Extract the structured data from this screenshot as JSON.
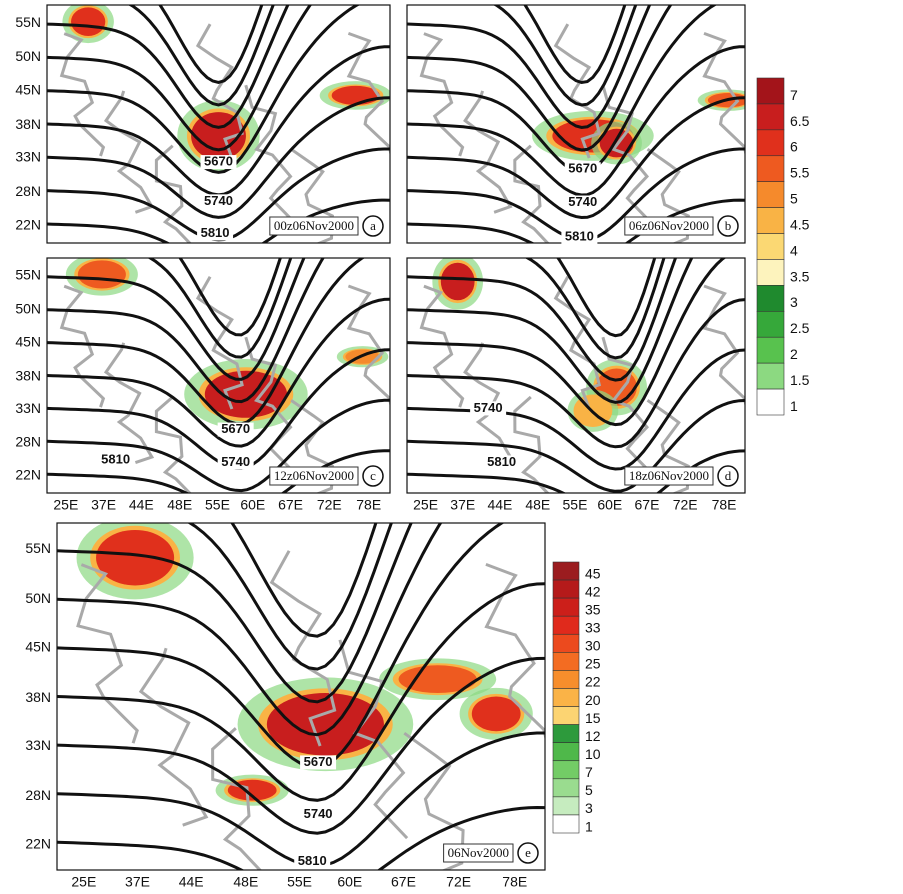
{
  "panels": [
    {
      "time": "00z06Nov2000",
      "label": "a",
      "contours": [
        "5670",
        "5740",
        "5810"
      ]
    },
    {
      "time": "06z06Nov2000",
      "label": "b",
      "contours": [
        "5670",
        "5740",
        "5810"
      ]
    },
    {
      "time": "12z06Nov2000",
      "label": "c",
      "contours": [
        "5670",
        "5740",
        "5810"
      ]
    },
    {
      "time": "18z06Nov2000",
      "label": "d",
      "contours": [
        "5740",
        "5810"
      ]
    },
    {
      "time": "06Nov2000",
      "label": "e",
      "contours": [
        "5670",
        "5740",
        "5810"
      ]
    }
  ],
  "lat_labels": [
    "55N",
    "50N",
    "45N",
    "38N",
    "33N",
    "28N",
    "22N"
  ],
  "lon_labels": [
    "25E",
    "37E",
    "44E",
    "48E",
    "55E",
    "60E",
    "67E",
    "72E",
    "78E"
  ],
  "colorbar_top": {
    "labels": [
      "7",
      "6.5",
      "6",
      "5.5",
      "5",
      "4.5",
      "4",
      "3.5",
      "3",
      "2.5",
      "2",
      "1.5",
      "1"
    ],
    "colors": [
      "#a3141a",
      "#c81e1e",
      "#e0301c",
      "#ee5a20",
      "#f58a2c",
      "#f9b345",
      "#fbd873",
      "#fdf3bd",
      "#1f8a2e",
      "#36a83a",
      "#58c24e",
      "#8cd981",
      "#ffffff"
    ]
  },
  "colorbar_bottom": {
    "labels": [
      "45",
      "42",
      "35",
      "33",
      "30",
      "25",
      "22",
      "20",
      "15",
      "12",
      "10",
      "7",
      "5",
      "3",
      "1"
    ],
    "colors": [
      "#9b1c1f",
      "#b51a1a",
      "#cc1f1a",
      "#e02a1c",
      "#ec4a1e",
      "#f36c22",
      "#f78e2c",
      "#fab347",
      "#fcd472",
      "#2d9a3c",
      "#4fb84a",
      "#73cc66",
      "#9adc8f",
      "#c6ecbf",
      "#ffffff"
    ]
  }
}
